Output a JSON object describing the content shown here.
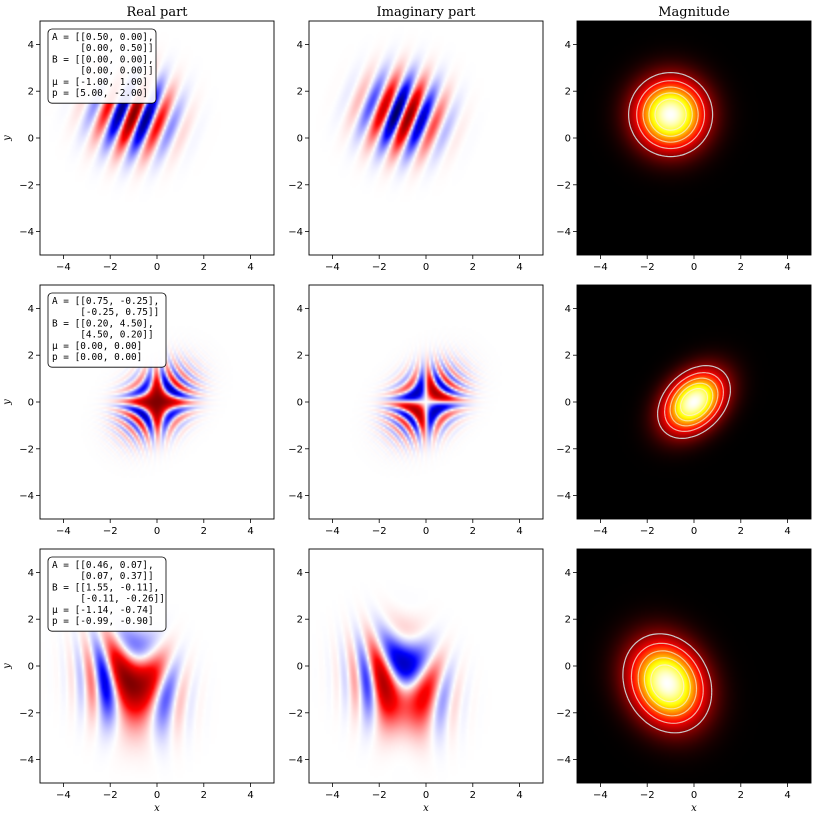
{
  "chart_data": [
    {
      "type": "heatmap",
      "title": "Real part",
      "part": "real",
      "ylabel": "y",
      "xlabel": "",
      "xlim": [
        -5,
        5
      ],
      "ylim": [
        -5,
        5
      ],
      "xticks": [
        "−4",
        "−2",
        "0",
        "2",
        "4"
      ],
      "yticks": [
        "4",
        "2",
        "0",
        "−2",
        "−4"
      ],
      "colormap": "seismic",
      "params": {
        "A": [
          [
            0.5,
            0.0
          ],
          [
            0.0,
            0.5
          ]
        ],
        "B": [
          [
            0.0,
            0.0
          ],
          [
            0.0,
            0.0
          ]
        ],
        "mu": [
          -1.0,
          1.0
        ],
        "p": [
          5.0,
          -2.0
        ]
      },
      "annotation": [
        "A = [[0.50, 0.00],",
        "     [0.00, 0.50]]",
        "B = [[0.00, 0.00],",
        "     [0.00, 0.00]]",
        "μ = [-1.00, 1.00]",
        "p = [5.00, -2.00]"
      ]
    },
    {
      "type": "heatmap",
      "title": "Imaginary part",
      "part": "imag",
      "ylabel": "",
      "xlabel": "",
      "xlim": [
        -5,
        5
      ],
      "ylim": [
        -5,
        5
      ],
      "xticks": [
        "−4",
        "−2",
        "0",
        "2",
        "4"
      ],
      "yticks": [
        "4",
        "2",
        "0",
        "−2",
        "−4"
      ],
      "colormap": "seismic",
      "params": {
        "A": [
          [
            0.5,
            0.0
          ],
          [
            0.0,
            0.5
          ]
        ],
        "B": [
          [
            0.0,
            0.0
          ],
          [
            0.0,
            0.0
          ]
        ],
        "mu": [
          -1.0,
          1.0
        ],
        "p": [
          5.0,
          -2.0
        ]
      }
    },
    {
      "type": "heatmap",
      "title": "Magnitude",
      "part": "abs",
      "ylabel": "",
      "xlabel": "",
      "xlim": [
        -5,
        5
      ],
      "ylim": [
        -5,
        5
      ],
      "xticks": [
        "−4",
        "−2",
        "0",
        "2",
        "4"
      ],
      "yticks": [
        "4",
        "2",
        "0",
        "−2",
        "−4"
      ],
      "colormap": "hot",
      "contours": true,
      "params": {
        "A": [
          [
            0.5,
            0.0
          ],
          [
            0.0,
            0.5
          ]
        ],
        "B": [
          [
            0.0,
            0.0
          ],
          [
            0.0,
            0.0
          ]
        ],
        "mu": [
          -1.0,
          1.0
        ],
        "p": [
          5.0,
          -2.0
        ]
      }
    },
    {
      "type": "heatmap",
      "title": "",
      "part": "real",
      "ylabel": "y",
      "xlabel": "",
      "xlim": [
        -5,
        5
      ],
      "ylim": [
        -5,
        5
      ],
      "xticks": [
        "−4",
        "−2",
        "0",
        "2",
        "4"
      ],
      "yticks": [
        "4",
        "2",
        "0",
        "−2",
        "−4"
      ],
      "colormap": "seismic",
      "params": {
        "A": [
          [
            0.75,
            -0.25
          ],
          [
            -0.25,
            0.75
          ]
        ],
        "B": [
          [
            0.2,
            4.5
          ],
          [
            4.5,
            0.2
          ]
        ],
        "mu": [
          0.0,
          0.0
        ],
        "p": [
          0.0,
          0.0
        ]
      },
      "annotation": [
        "A = [[0.75, -0.25],",
        "     [-0.25, 0.75]]",
        "B = [[0.20, 4.50],",
        "     [4.50, 0.20]]",
        "μ = [0.00, 0.00]",
        "p = [0.00, 0.00]"
      ]
    },
    {
      "type": "heatmap",
      "title": "",
      "part": "imag",
      "ylabel": "",
      "xlabel": "",
      "xlim": [
        -5,
        5
      ],
      "ylim": [
        -5,
        5
      ],
      "xticks": [
        "−4",
        "−2",
        "0",
        "2",
        "4"
      ],
      "yticks": [
        "4",
        "2",
        "0",
        "−2",
        "−4"
      ],
      "colormap": "seismic",
      "params": {
        "A": [
          [
            0.75,
            -0.25
          ],
          [
            -0.25,
            0.75
          ]
        ],
        "B": [
          [
            0.2,
            4.5
          ],
          [
            4.5,
            0.2
          ]
        ],
        "mu": [
          0.0,
          0.0
        ],
        "p": [
          0.0,
          0.0
        ]
      }
    },
    {
      "type": "heatmap",
      "title": "",
      "part": "abs",
      "ylabel": "",
      "xlabel": "",
      "xlim": [
        -5,
        5
      ],
      "ylim": [
        -5,
        5
      ],
      "xticks": [
        "−4",
        "−2",
        "0",
        "2",
        "4"
      ],
      "yticks": [
        "4",
        "2",
        "0",
        "−2",
        "−4"
      ],
      "colormap": "hot",
      "contours": true,
      "params": {
        "A": [
          [
            0.75,
            -0.25
          ],
          [
            -0.25,
            0.75
          ]
        ],
        "B": [
          [
            0.2,
            4.5
          ],
          [
            4.5,
            0.2
          ]
        ],
        "mu": [
          0.0,
          0.0
        ],
        "p": [
          0.0,
          0.0
        ]
      }
    },
    {
      "type": "heatmap",
      "title": "",
      "part": "real",
      "ylabel": "y",
      "xlabel": "x",
      "xlim": [
        -5,
        5
      ],
      "ylim": [
        -5,
        5
      ],
      "xticks": [
        "−4",
        "−2",
        "0",
        "2",
        "4"
      ],
      "yticks": [
        "4",
        "2",
        "0",
        "−2",
        "−4"
      ],
      "colormap": "seismic",
      "params": {
        "A": [
          [
            0.46,
            0.07
          ],
          [
            0.07,
            0.37
          ]
        ],
        "B": [
          [
            1.55,
            -0.11
          ],
          [
            -0.11,
            -0.26
          ]
        ],
        "mu": [
          -1.14,
          -0.74
        ],
        "p": [
          -0.99,
          -0.9
        ]
      },
      "annotation": [
        "A = [[0.46, 0.07],",
        "     [0.07, 0.37]]",
        "B = [[1.55, -0.11],",
        "     [-0.11, -0.26]]",
        "μ = [-1.14, -0.74]",
        "p = [-0.99, -0.90]"
      ]
    },
    {
      "type": "heatmap",
      "title": "",
      "part": "imag",
      "ylabel": "",
      "xlabel": "x",
      "xlim": [
        -5,
        5
      ],
      "ylim": [
        -5,
        5
      ],
      "xticks": [
        "−4",
        "−2",
        "0",
        "2",
        "4"
      ],
      "yticks": [
        "4",
        "2",
        "0",
        "−2",
        "−4"
      ],
      "colormap": "seismic",
      "params": {
        "A": [
          [
            0.46,
            0.07
          ],
          [
            0.07,
            0.37
          ]
        ],
        "B": [
          [
            1.55,
            -0.11
          ],
          [
            -0.11,
            -0.26
          ]
        ],
        "mu": [
          -1.14,
          -0.74
        ],
        "p": [
          -0.99,
          -0.9
        ]
      }
    },
    {
      "type": "heatmap",
      "title": "",
      "part": "abs",
      "ylabel": "",
      "xlabel": "x",
      "xlim": [
        -5,
        5
      ],
      "ylim": [
        -5,
        5
      ],
      "xticks": [
        "−4",
        "−2",
        "0",
        "2",
        "4"
      ],
      "yticks": [
        "4",
        "2",
        "0",
        "−2",
        "−4"
      ],
      "colormap": "hot",
      "contours": true,
      "params": {
        "A": [
          [
            0.46,
            0.07
          ],
          [
            0.07,
            0.37
          ]
        ],
        "B": [
          [
            1.55,
            -0.11
          ],
          [
            -0.11,
            -0.26
          ]
        ],
        "mu": [
          -1.14,
          -0.74
        ],
        "p": [
          -0.99,
          -0.9
        ]
      }
    }
  ]
}
